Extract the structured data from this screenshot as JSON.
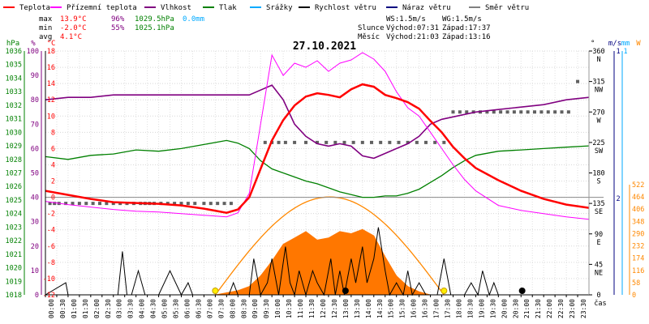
{
  "chart_data": {
    "type": "line",
    "title": "27.10.2021",
    "legend": [
      {
        "label": "Teplota",
        "color": "#ff0000"
      },
      {
        "label": "Přízemní teplota",
        "color": "#ff00ff"
      },
      {
        "label": "Vlhkost",
        "color": "#800080"
      },
      {
        "label": "Tlak",
        "color": "#008000"
      },
      {
        "label": "Srážky",
        "color": "#00aaff"
      },
      {
        "label": "Rychlost větru",
        "color": "#000000"
      },
      {
        "label": "Náraz větru",
        "color": "#000080"
      },
      {
        "label": "Směr větru",
        "color": "#808080"
      }
    ],
    "stats": {
      "max_label": "max",
      "min_label": "min",
      "avg_label": "avg",
      "max_temp": "13.9°C",
      "max_hum": "96%",
      "max_press": "1029.5hPa",
      "rain": "0.0mm",
      "min_temp": "-2.0°C",
      "min_hum": "55%",
      "min_press": "1025.1hPa",
      "avg_temp": "4.1°C"
    },
    "info": {
      "ws": "WS:1.5m/s",
      "wg": "WG:1.5m/s",
      "sun_label": "Slunce",
      "sunrise": "Východ:07:31",
      "sunset": "Západ:17:37",
      "moon_label": "Měsíc",
      "moonrise": "Východ:21:03",
      "moonset": "Západ:13:16"
    },
    "axes": {
      "hpa_unit": "hPa",
      "hpa_ticks": [
        1036,
        1035,
        1034,
        1033,
        1032,
        1031,
        1030,
        1029,
        1028,
        1027,
        1026,
        1025,
        1024,
        1023,
        1022,
        1021,
        1020,
        1019,
        1018
      ],
      "hum_unit": "%",
      "hum_ticks": [
        100,
        90,
        80,
        70,
        60,
        50,
        40,
        30,
        20,
        10,
        0
      ],
      "temp_unit": "°C",
      "temp_ticks": [
        18,
        16,
        14,
        12,
        10,
        8,
        6,
        4,
        2,
        0,
        -2,
        -4,
        -6,
        -8,
        -10,
        -12
      ],
      "dir_unit": "°",
      "dir_ticks": [
        {
          "deg": "360",
          "lbl": "N"
        },
        {
          "deg": "315",
          "lbl": "NW"
        },
        {
          "deg": "270",
          "lbl": "W"
        },
        {
          "deg": "225",
          "lbl": "SW"
        },
        {
          "deg": "180",
          "lbl": "S"
        },
        {
          "deg": "135",
          "lbl": "SE"
        },
        {
          "deg": "90",
          "lbl": "E"
        },
        {
          "deg": "45",
          "lbl": "NE"
        },
        {
          "deg": "0",
          "lbl": ""
        }
      ],
      "ms_unit": "m/s",
      "ms_ticks": [
        "1",
        "2"
      ],
      "mm_unit": "mm",
      "mm_ticks": [
        "1"
      ],
      "w_unit": "W",
      "w_ticks": [
        522,
        464,
        406,
        348,
        290,
        232,
        174,
        116,
        58,
        0
      ],
      "time_unit": "čas",
      "time_ticks": [
        "00:00",
        "00:30",
        "01:00",
        "01:30",
        "02:00",
        "02:30",
        "03:00",
        "03:30",
        "04:00",
        "04:30",
        "05:00",
        "05:30",
        "06:00",
        "06:30",
        "07:00",
        "07:30",
        "08:00",
        "08:30",
        "09:00",
        "09:30",
        "10:00",
        "10:30",
        "11:00",
        "11:30",
        "12:00",
        "12:30",
        "13:00",
        "13:30",
        "14:00",
        "14:30",
        "15:00",
        "15:30",
        "16:00",
        "16:30",
        "17:00",
        "17:30",
        "18:00",
        "18:30",
        "19:00",
        "19:30",
        "20:00",
        "20:30",
        "21:00",
        "21:30",
        "22:00",
        "22:30",
        "23:00",
        "23:30"
      ]
    },
    "series": [
      {
        "name": "Teplota",
        "unit": "°C",
        "color": "#ff0000",
        "x": [
          0,
          1,
          2,
          3,
          4,
          5,
          6,
          7,
          8,
          8.5,
          9,
          9.5,
          10,
          10.5,
          11,
          11.5,
          12,
          12.5,
          13,
          13.5,
          14,
          14.5,
          15,
          15.5,
          16,
          16.5,
          17,
          17.5,
          18,
          18.5,
          19,
          20,
          21,
          22,
          23,
          24
        ],
        "y": [
          0.8,
          0.3,
          -0.2,
          -0.6,
          -0.7,
          -0.8,
          -1.0,
          -1.4,
          -1.9,
          -1.5,
          0.0,
          3.5,
          7.0,
          9.5,
          11.3,
          12.4,
          12.8,
          12.6,
          12.3,
          13.3,
          13.9,
          13.6,
          12.6,
          12.2,
          11.7,
          10.9,
          9.4,
          8.0,
          6.2,
          4.8,
          3.6,
          2.1,
          0.8,
          -0.2,
          -0.9,
          -1.3
        ]
      },
      {
        "name": "Přízemní teplota",
        "unit": "°C",
        "color": "#ff00ff",
        "x": [
          0,
          1,
          2,
          3,
          4,
          5,
          6,
          7,
          8,
          8.5,
          9,
          9.5,
          10,
          10.5,
          11,
          11.5,
          12,
          12.5,
          13,
          13.5,
          14,
          14.5,
          15,
          15.5,
          16,
          16.5,
          17,
          17.5,
          18,
          18.5,
          19,
          20,
          21,
          22,
          23,
          24
        ],
        "y": [
          -0.5,
          -0.9,
          -1.2,
          -1.5,
          -1.7,
          -1.8,
          -2.0,
          -2.2,
          -2.4,
          -1.9,
          0.5,
          9.0,
          17.5,
          15.0,
          16.5,
          16.0,
          16.8,
          15.5,
          16.5,
          16.9,
          17.8,
          17.0,
          15.5,
          13.0,
          11.0,
          10.0,
          8.0,
          6.0,
          4.0,
          2.2,
          0.8,
          -1.0,
          -1.6,
          -2.0,
          -2.4,
          -2.7
        ]
      },
      {
        "name": "Vlhkost",
        "unit": "%",
        "color": "#800080",
        "x": [
          0,
          1,
          2,
          3,
          4,
          5,
          6,
          7,
          8,
          8.5,
          9,
          9.5,
          10,
          10.5,
          11,
          11.5,
          12,
          12.5,
          13,
          13.5,
          14,
          14.5,
          15,
          15.5,
          16,
          16.5,
          17,
          17.5,
          18,
          18.5,
          19,
          20,
          21,
          22,
          23,
          24
        ],
        "y": [
          80,
          81,
          81,
          82,
          82,
          82,
          82,
          82,
          82,
          82,
          82,
          84,
          86,
          80,
          70,
          65,
          62,
          61,
          62,
          61,
          57,
          56,
          58,
          60,
          62,
          65,
          70,
          72,
          73,
          74,
          75,
          76,
          77,
          78,
          80,
          81
        ]
      },
      {
        "name": "Tlak",
        "unit": "hPa",
        "color": "#008000",
        "x": [
          0,
          1,
          2,
          3,
          4,
          5,
          6,
          7,
          8,
          8.5,
          9,
          9.5,
          10,
          10.5,
          11,
          11.5,
          12,
          12.5,
          13,
          13.5,
          14,
          14.5,
          15,
          15.5,
          16,
          16.5,
          17,
          17.5,
          18,
          18.5,
          19,
          20,
          21,
          22,
          23,
          24
        ],
        "y": [
          1028.2,
          1028.0,
          1028.3,
          1028.4,
          1028.7,
          1028.6,
          1028.8,
          1029.1,
          1029.4,
          1029.2,
          1028.8,
          1027.9,
          1027.3,
          1027.0,
          1026.7,
          1026.4,
          1026.2,
          1025.9,
          1025.6,
          1025.4,
          1025.2,
          1025.2,
          1025.3,
          1025.3,
          1025.5,
          1025.8,
          1026.3,
          1026.8,
          1027.4,
          1027.9,
          1028.3,
          1028.6,
          1028.7,
          1028.8,
          1028.9,
          1029.0
        ]
      },
      {
        "name": "Rychlost větru",
        "unit": "m/s",
        "color": "#000000",
        "x": [
          0,
          0.9,
          1.0,
          1.1,
          3.0,
          3.2,
          3.4,
          3.6,
          3.8,
          4.1,
          4.4,
          4.7,
          5.0,
          5.5,
          6.0,
          6.3,
          6.5,
          6.7,
          7.0,
          8.0,
          8.1,
          8.3,
          8.5,
          9.0,
          9.2,
          9.5,
          9.8,
          10.0,
          10.3,
          10.6,
          10.8,
          11.0,
          11.2,
          11.5,
          11.8,
          12.0,
          12.3,
          12.6,
          12.8,
          13.0,
          13.2,
          13.5,
          13.7,
          14.0,
          14.2,
          14.5,
          14.7,
          15.0,
          15.2,
          15.5,
          15.8,
          16.0,
          16.2,
          16.5,
          16.8,
          17.0,
          17.3,
          17.6,
          17.9,
          18.2,
          18.5,
          18.8,
          19.1,
          19.3,
          19.6,
          19.8,
          20.0,
          20.2,
          20.5,
          21.0,
          22.0,
          23.0,
          24.0
        ],
        "y": [
          0,
          0.25,
          0,
          0,
          0,
          0,
          0.9,
          0,
          0,
          0.5,
          0,
          0,
          0,
          0.5,
          0,
          0.25,
          0,
          0,
          0,
          0,
          0,
          0.25,
          0,
          0,
          0.75,
          0,
          0.25,
          0.75,
          0,
          1.0,
          0.25,
          0,
          0.5,
          0,
          0.5,
          0.25,
          0,
          0.75,
          0,
          0.5,
          0,
          0.75,
          0.25,
          1.0,
          0.25,
          0.75,
          1.4,
          0.5,
          0,
          0.25,
          0,
          0.5,
          0,
          0.25,
          0,
          0,
          0,
          0.75,
          0,
          0,
          0,
          0.25,
          0,
          0.5,
          0,
          0.25,
          0,
          0,
          0,
          0,
          0,
          0,
          0
        ]
      },
      {
        "name": "Slunce",
        "unit": "W",
        "color": "#ff6600",
        "x": [
          7.5,
          8.5,
          9,
          9.5,
          10,
          10.5,
          11,
          11.5,
          12,
          12.5,
          13,
          13.5,
          14,
          14.5,
          15,
          15.5,
          16,
          16.5,
          17
        ],
        "y": [
          0,
          20,
          40,
          90,
          160,
          240,
          270,
          300,
          260,
          270,
          300,
          290,
          310,
          280,
          180,
          90,
          40,
          15,
          0
        ]
      },
      {
        "name": "Směr větru",
        "unit": "°",
        "color": "#606060",
        "x": [
          0.2,
          0.4,
          0.6,
          0.9,
          1.2,
          1.5,
          1.8,
          2.1,
          2.4,
          2.7,
          3.0,
          3.3,
          3.6,
          3.9,
          4.2,
          4.4,
          4.6,
          4.8,
          5.1,
          5.4,
          5.7,
          6.0,
          6.3,
          6.6,
          7.0,
          7.3,
          7.6,
          7.9,
          8.2,
          9.7,
          10.0,
          10.3,
          10.6,
          11.0,
          11.5,
          12.0,
          12.4,
          12.8,
          13.2,
          13.6,
          14.0,
          14.4,
          14.8,
          15.2,
          15.6,
          16.0,
          16.4,
          16.8,
          17.2,
          17.6,
          18.0,
          18.3,
          18.6,
          18.9,
          19.2,
          19.5,
          19.8,
          20.1,
          20.4,
          20.7,
          21.0,
          21.3,
          21.6,
          21.9,
          22.2,
          22.5,
          22.8,
          23.1,
          23.5
        ],
        "y": [
          135,
          135,
          135,
          135,
          135,
          135,
          135,
          135,
          135,
          135,
          135,
          135,
          135,
          135,
          135,
          135,
          135,
          135,
          135,
          135,
          135,
          135,
          135,
          135,
          135,
          135,
          135,
          135,
          135,
          225,
          225,
          225,
          225,
          225,
          225,
          225,
          225,
          225,
          225,
          225,
          225,
          225,
          225,
          225,
          225,
          225,
          225,
          225,
          225,
          225,
          270,
          270,
          270,
          270,
          270,
          270,
          270,
          270,
          270,
          270,
          270,
          270,
          270,
          270,
          270,
          270,
          270,
          270,
          315
        ]
      }
    ],
    "markers": [
      {
        "label": "sunrise",
        "time": 7.5,
        "color": "#ffee00"
      },
      {
        "label": "sunset",
        "time": 17.6,
        "color": "#ffee00"
      },
      {
        "label": "moonrise",
        "time": 21.05,
        "color": "#000000"
      },
      {
        "label": "moonset",
        "time": 13.25,
        "color": "#000000"
      }
    ]
  }
}
